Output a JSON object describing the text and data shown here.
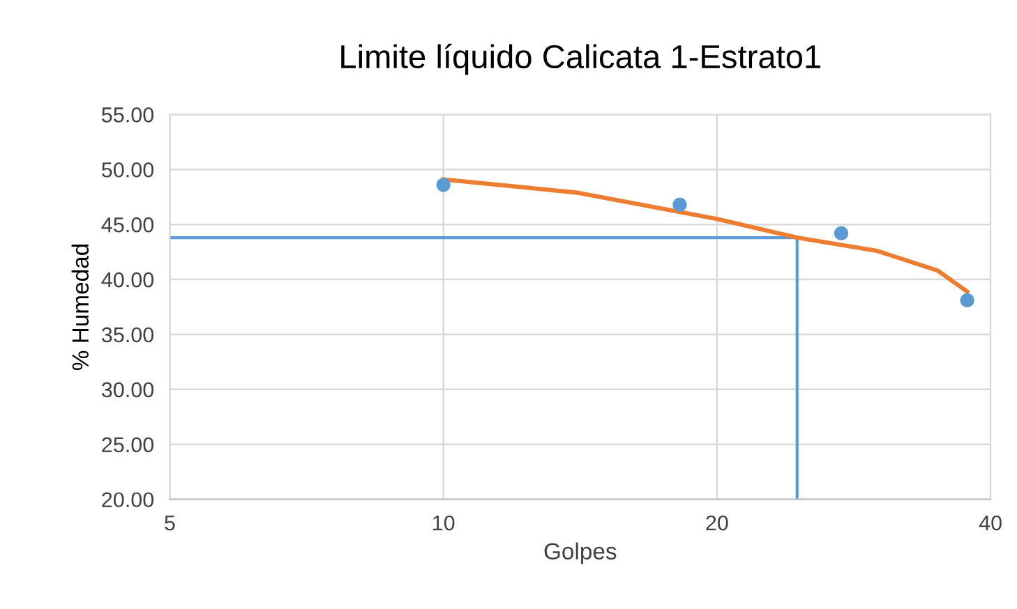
{
  "chart_data": {
    "type": "scatter",
    "title": "Limite líquido Calicata 1-Estrato1",
    "xlabel": "Golpes",
    "ylabel": "% Humedad",
    "log": "x",
    "xlim": [
      5,
      40
    ],
    "xticks": [
      5,
      10,
      20,
      40
    ],
    "ylim": [
      20,
      55
    ],
    "yticks": [
      {
        "value": 20,
        "label": "20.00"
      },
      {
        "value": 25,
        "label": "25.00"
      },
      {
        "value": 30,
        "label": "30.00"
      },
      {
        "value": 35,
        "label": "35.00"
      },
      {
        "value": 40,
        "label": "40.00"
      },
      {
        "value": 45,
        "label": "45.00"
      },
      {
        "value": 50,
        "label": "50.00"
      },
      {
        "value": 55,
        "label": "55.00"
      }
    ],
    "grid": true,
    "series": [
      {
        "marker": "circle",
        "color": "#5b9bd5",
        "x": [
          10,
          18.2,
          27.4,
          37.7
        ],
        "values": [
          48.6,
          46.8,
          44.2,
          38.1
        ]
      },
      {
        "type": "line",
        "marker": "none",
        "color": "#ed7d31",
        "x": [
          10,
          14,
          20,
          24.5,
          30,
          35,
          37.7
        ],
        "values": [
          49.1,
          47.9,
          45.5,
          43.8,
          42.6,
          40.8,
          38.9
        ]
      }
    ],
    "ref_lines": [
      {
        "axis": "y",
        "value": 43.8,
        "color": "#5b9bd5"
      },
      {
        "axis": "x",
        "value": 24.5,
        "color": "#5b9bd5"
      }
    ]
  }
}
